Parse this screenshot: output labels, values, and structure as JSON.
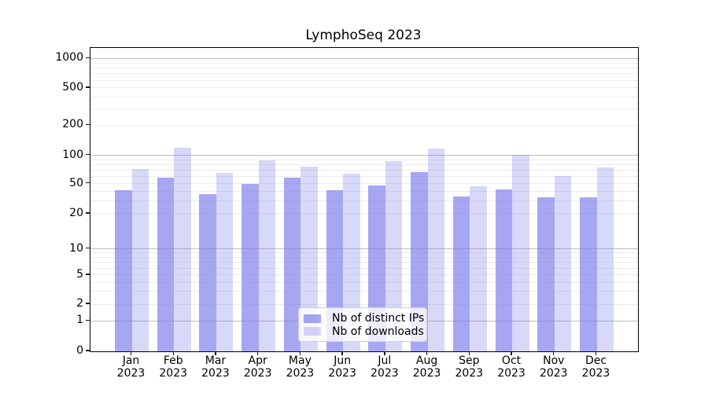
{
  "title": "LymphoSeq 2023",
  "legend": {
    "items": [
      {
        "label": "Nb of distinct IPs",
        "color": "rgba(121,121,233,0.66)",
        "hex_on_white": "#a6a6f0"
      },
      {
        "label": "Nb of downloads",
        "color": "rgba(121,121,233,0.29)",
        "hex_on_white": "#d8d8f6"
      }
    ]
  },
  "y_axis": {
    "tick_labels": [
      "1000",
      "500",
      "200",
      "100",
      "50",
      "20",
      "10",
      "5",
      "2",
      "1",
      "0"
    ]
  },
  "x_axis": {
    "months": [
      "Jan",
      "Feb",
      "Mar",
      "Apr",
      "May",
      "Jun",
      "Jul",
      "Aug",
      "Sep",
      "Oct",
      "Nov",
      "Dec"
    ],
    "year": "2023"
  },
  "chart_data": {
    "type": "bar",
    "categories": [
      "Jan 2023",
      "Feb 2023",
      "Mar 2023",
      "Apr 2023",
      "May 2023",
      "Jun 2023",
      "Jul 2023",
      "Aug 2023",
      "Sep 2023",
      "Oct 2023",
      "Nov 2023",
      "Dec 2023"
    ],
    "series": [
      {
        "name": "Nb of distinct IPs",
        "values": [
          41,
          58,
          36,
          50,
          58,
          41,
          47,
          66,
          34,
          42,
          33,
          33
        ],
        "color_on_white": "#a6a6f0"
      },
      {
        "name": "Nb of downloads",
        "values": [
          72,
          120,
          65,
          88,
          76,
          64,
          87,
          118,
          46,
          101,
          60,
          75
        ],
        "color_on_white": "#d8d8f6"
      }
    ],
    "title": "LymphoSeq 2023",
    "xlabel": "",
    "ylabel": "",
    "yscale": "symlog",
    "y_ticks": [
      0,
      1,
      2,
      5,
      10,
      20,
      50,
      100,
      200,
      500,
      1000
    ],
    "ylim": [
      0,
      1270
    ],
    "grid": "major-and-minor horizontal",
    "legend_position": "lower center"
  },
  "colors": {
    "bar_base": "#7979e9",
    "grid_major": "#bdbdbd",
    "grid_minor": "#ececec",
    "axis": "#000000",
    "background": "#ffffff"
  }
}
